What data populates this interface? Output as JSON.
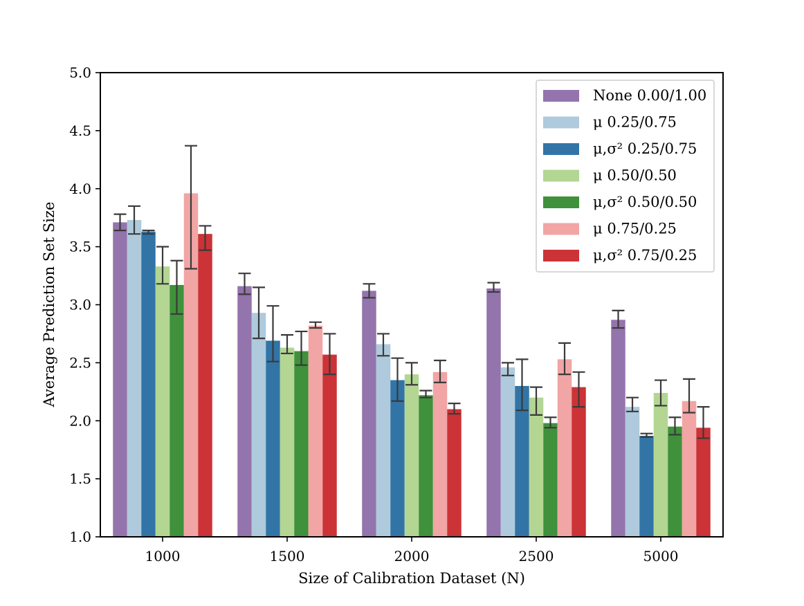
{
  "chart_data": {
    "type": "bar",
    "categories": [
      "1000",
      "1500",
      "2000",
      "2500",
      "5000"
    ],
    "xlabel": "Size of Calibration Dataset (N)",
    "ylabel": "Average Prediction Set Size",
    "ylim": [
      1.0,
      5.0
    ],
    "yticks": [
      "1.0",
      "1.5",
      "2.0",
      "2.5",
      "3.0",
      "3.5",
      "4.0",
      "4.5",
      "5.0"
    ],
    "grid": false,
    "legend_position": "top-right",
    "series": [
      {
        "name": "None 0.00/1.00",
        "color": "#9474ac",
        "values": [
          3.71,
          3.16,
          3.12,
          3.14,
          2.87
        ],
        "err_low": [
          3.64,
          3.09,
          3.06,
          3.11,
          2.8
        ],
        "err_high": [
          3.78,
          3.27,
          3.18,
          3.19,
          2.95
        ]
      },
      {
        "name": "μ 0.25/0.75",
        "color": "#aecadc",
        "values": [
          3.73,
          2.93,
          2.66,
          2.46,
          2.12
        ],
        "err_low": [
          3.61,
          2.71,
          2.56,
          2.39,
          2.08
        ],
        "err_high": [
          3.85,
          3.15,
          2.75,
          2.5,
          2.2
        ]
      },
      {
        "name": "μ,σ² 0.25/0.75",
        "color": "#3274a6",
        "values": [
          3.63,
          2.69,
          2.35,
          2.3,
          1.87
        ],
        "err_low": [
          3.61,
          2.51,
          2.17,
          2.09,
          1.86
        ],
        "err_high": [
          3.64,
          2.99,
          2.54,
          2.53,
          1.89
        ]
      },
      {
        "name": "μ 0.50/0.50",
        "color": "#b3d693",
        "values": [
          3.33,
          2.63,
          2.4,
          2.2,
          2.24
        ],
        "err_low": [
          3.18,
          2.58,
          2.31,
          2.05,
          2.13
        ],
        "err_high": [
          3.5,
          2.74,
          2.5,
          2.29,
          2.35
        ]
      },
      {
        "name": "μ,σ² 0.50/0.50",
        "color": "#3f913b",
        "values": [
          3.17,
          2.6,
          2.22,
          1.98,
          1.95
        ],
        "err_low": [
          2.92,
          2.48,
          2.2,
          1.94,
          1.88
        ],
        "err_high": [
          3.38,
          2.77,
          2.26,
          2.03,
          2.03
        ]
      },
      {
        "name": "μ 0.75/0.25",
        "color": "#f1a5a5",
        "values": [
          3.96,
          2.82,
          2.42,
          2.53,
          2.17
        ],
        "err_low": [
          3.31,
          2.8,
          2.33,
          2.4,
          2.07
        ],
        "err_high": [
          4.37,
          2.85,
          2.52,
          2.67,
          2.36
        ]
      },
      {
        "name": "μ,σ² 0.75/0.25",
        "color": "#cb3336",
        "values": [
          3.61,
          2.57,
          2.1,
          2.29,
          1.94
        ],
        "err_low": [
          3.47,
          2.4,
          2.06,
          2.12,
          1.85
        ],
        "err_high": [
          3.68,
          2.75,
          2.15,
          2.42,
          2.12
        ]
      }
    ]
  }
}
